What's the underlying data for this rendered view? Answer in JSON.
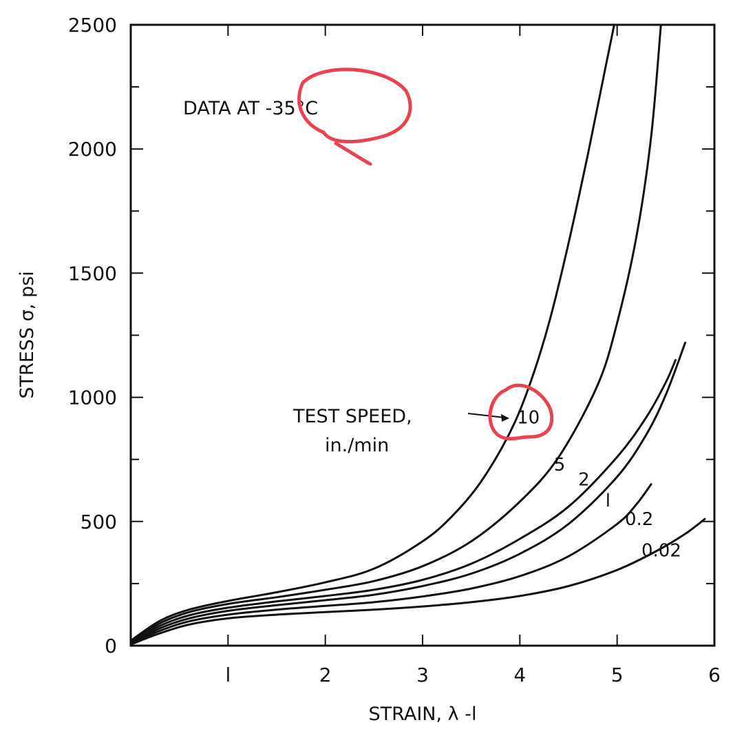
{
  "chart_data": {
    "type": "line",
    "title": "",
    "xlabel": "STRAIN, λ -l",
    "ylabel": "STRESS σ, psi",
    "xlim": [
      0,
      6
    ],
    "ylim": [
      0,
      2500
    ],
    "x_ticks": [
      1,
      2,
      3,
      4,
      5,
      6
    ],
    "x_tick_labels": [
      "l",
      "2",
      "3",
      "4",
      "5",
      "6"
    ],
    "y_ticks": [
      0,
      500,
      1000,
      1500,
      2000,
      2500
    ],
    "y_tick_labels": [
      "0",
      "500",
      "1000",
      "1500",
      "2000",
      "2500"
    ],
    "grid": false,
    "annotations": {
      "condition": "DATA AT -35°C",
      "speed_label_line1": "TEST SPEED,",
      "speed_label_line2": "in./min"
    },
    "highlight_color": "#e8434f",
    "line_color": "#111111",
    "series": [
      {
        "name": "10",
        "x": [
          0,
          0.3,
          0.6,
          1.0,
          1.5,
          2.0,
          2.5,
          3.0,
          3.3,
          3.6,
          3.9,
          4.1,
          4.3,
          4.5,
          4.7,
          4.85,
          4.97
        ],
        "y": [
          20,
          100,
          145,
          180,
          215,
          255,
          310,
          420,
          520,
          660,
          860,
          1050,
          1300,
          1620,
          1980,
          2270,
          2500
        ]
      },
      {
        "name": "5",
        "x": [
          0,
          0.3,
          0.6,
          1.0,
          1.5,
          2.0,
          2.5,
          3.0,
          3.5,
          4.0,
          4.4,
          4.8,
          5.0,
          5.2,
          5.35,
          5.45
        ],
        "y": [
          15,
          90,
          135,
          168,
          195,
          225,
          260,
          320,
          420,
          580,
          760,
          1050,
          1300,
          1650,
          2050,
          2500
        ]
      },
      {
        "name": "2",
        "x": [
          0,
          0.3,
          0.6,
          1.0,
          1.5,
          2.0,
          2.5,
          3.0,
          3.5,
          4.0,
          4.5,
          5.0,
          5.3,
          5.5,
          5.6
        ],
        "y": [
          12,
          80,
          122,
          153,
          178,
          200,
          225,
          265,
          330,
          430,
          560,
          760,
          920,
          1060,
          1150
        ]
      },
      {
        "name": "1",
        "x": [
          0,
          0.3,
          0.6,
          1.0,
          1.5,
          2.0,
          2.5,
          3.0,
          3.5,
          4.0,
          4.5,
          5.0,
          5.3,
          5.5,
          5.7
        ],
        "y": [
          10,
          70,
          110,
          140,
          163,
          183,
          205,
          240,
          290,
          370,
          490,
          680,
          850,
          1010,
          1220
        ]
      },
      {
        "name": "0.2",
        "x": [
          0,
          0.3,
          0.6,
          1.0,
          1.5,
          2.0,
          2.5,
          3.0,
          3.5,
          4.0,
          4.5,
          5.0,
          5.2,
          5.35
        ],
        "y": [
          8,
          60,
          98,
          125,
          145,
          160,
          175,
          198,
          230,
          280,
          360,
          490,
          570,
          650
        ]
      },
      {
        "name": "0.02",
        "x": [
          0,
          0.3,
          0.6,
          1.0,
          1.5,
          2.0,
          2.5,
          3.0,
          3.5,
          4.0,
          4.5,
          5.0,
          5.4,
          5.7,
          5.9
        ],
        "y": [
          5,
          50,
          85,
          110,
          125,
          135,
          145,
          158,
          175,
          200,
          240,
          305,
          380,
          450,
          510
        ]
      }
    ],
    "curve_labels": [
      "10",
      "5",
      "2",
      "l",
      "0.2",
      "0.02"
    ]
  }
}
